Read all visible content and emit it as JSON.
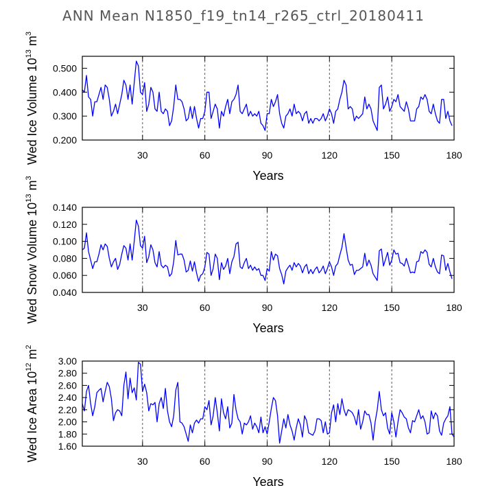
{
  "figure_title": "ANN Mean N1850_f19_tn14_r265_ctrl_20180411",
  "chart_data": [
    {
      "type": "line",
      "title": "",
      "xlabel": "Years",
      "ylabel_parts": {
        "prefix": "Wed Ice Volume 10",
        "exp1": "13",
        "mid": " m",
        "exp2": "3"
      },
      "xlim": [
        1,
        180
      ],
      "ylim": [
        0.2,
        0.55
      ],
      "xticks": [
        30,
        60,
        90,
        120,
        150,
        180
      ],
      "yticks": [
        0.2,
        0.3,
        0.4,
        0.5
      ],
      "ytick_labels": [
        "0.200",
        "0.300",
        "0.400",
        "0.500"
      ],
      "series": [
        {
          "name": "Wed Ice Volume",
          "color": "#0000ff",
          "values": [
            0.41,
            0.4,
            0.47,
            0.38,
            0.37,
            0.3,
            0.36,
            0.36,
            0.39,
            0.42,
            0.37,
            0.43,
            0.42,
            0.37,
            0.3,
            0.32,
            0.35,
            0.31,
            0.35,
            0.39,
            0.45,
            0.43,
            0.37,
            0.43,
            0.35,
            0.44,
            0.53,
            0.51,
            0.4,
            0.39,
            0.44,
            0.32,
            0.35,
            0.42,
            0.4,
            0.33,
            0.32,
            0.4,
            0.32,
            0.31,
            0.33,
            0.32,
            0.26,
            0.28,
            0.34,
            0.43,
            0.37,
            0.37,
            0.36,
            0.33,
            0.28,
            0.29,
            0.34,
            0.29,
            0.34,
            0.29,
            0.25,
            0.29,
            0.29,
            0.32,
            0.4,
            0.4,
            0.29,
            0.32,
            0.35,
            0.33,
            0.25,
            0.32,
            0.3,
            0.34,
            0.37,
            0.31,
            0.36,
            0.37,
            0.39,
            0.43,
            0.32,
            0.31,
            0.33,
            0.35,
            0.3,
            0.32,
            0.3,
            0.31,
            0.3,
            0.32,
            0.27,
            0.26,
            0.24,
            0.31,
            0.31,
            0.37,
            0.34,
            0.36,
            0.39,
            0.31,
            0.27,
            0.25,
            0.3,
            0.31,
            0.33,
            0.3,
            0.35,
            0.31,
            0.32,
            0.31,
            0.28,
            0.31,
            0.32,
            0.27,
            0.29,
            0.27,
            0.29,
            0.29,
            0.28,
            0.29,
            0.31,
            0.28,
            0.3,
            0.33,
            0.31,
            0.27,
            0.32,
            0.33,
            0.37,
            0.4,
            0.45,
            0.43,
            0.33,
            0.34,
            0.33,
            0.28,
            0.3,
            0.29,
            0.3,
            0.31,
            0.38,
            0.33,
            0.35,
            0.33,
            0.28,
            0.26,
            0.24,
            0.42,
            0.43,
            0.33,
            0.35,
            0.38,
            0.32,
            0.34,
            0.37,
            0.36,
            0.39,
            0.34,
            0.33,
            0.32,
            0.36,
            0.33,
            0.28,
            0.28,
            0.28,
            0.33,
            0.34,
            0.38,
            0.37,
            0.39,
            0.37,
            0.32,
            0.31,
            0.35,
            0.31,
            0.28,
            0.27,
            0.37,
            0.37,
            0.29,
            0.32,
            0.28,
            0.26
          ]
        }
      ]
    },
    {
      "type": "line",
      "title": "",
      "xlabel": "Years",
      "ylabel_parts": {
        "prefix": "Wed Snow Volume 10",
        "exp1": "13",
        "mid": " m",
        "exp2": "3"
      },
      "xlim": [
        1,
        180
      ],
      "ylim": [
        0.04,
        0.14
      ],
      "xticks": [
        30,
        60,
        90,
        120,
        150,
        180
      ],
      "yticks": [
        0.04,
        0.06,
        0.08,
        0.1,
        0.12,
        0.14
      ],
      "ytick_labels": [
        "0.040",
        "0.060",
        "0.080",
        "0.100",
        "0.120",
        "0.140"
      ],
      "series": [
        {
          "name": "Wed Snow Volume",
          "color": "#0000ff",
          "values": [
            0.09,
            0.092,
            0.11,
            0.088,
            0.078,
            0.068,
            0.076,
            0.076,
            0.085,
            0.096,
            0.09,
            0.097,
            0.094,
            0.08,
            0.07,
            0.076,
            0.08,
            0.067,
            0.073,
            0.085,
            0.095,
            0.092,
            0.078,
            0.097,
            0.078,
            0.1,
            0.125,
            0.118,
            0.095,
            0.092,
            0.106,
            0.075,
            0.082,
            0.096,
            0.09,
            0.075,
            0.07,
            0.088,
            0.072,
            0.069,
            0.072,
            0.07,
            0.059,
            0.062,
            0.076,
            0.101,
            0.084,
            0.085,
            0.085,
            0.078,
            0.064,
            0.066,
            0.077,
            0.065,
            0.076,
            0.063,
            0.053,
            0.06,
            0.062,
            0.07,
            0.087,
            0.085,
            0.06,
            0.068,
            0.085,
            0.08,
            0.055,
            0.075,
            0.067,
            0.071,
            0.08,
            0.062,
            0.076,
            0.082,
            0.097,
            0.099,
            0.07,
            0.068,
            0.075,
            0.08,
            0.068,
            0.072,
            0.066,
            0.07,
            0.066,
            0.068,
            0.06,
            0.06,
            0.054,
            0.068,
            0.065,
            0.088,
            0.078,
            0.085,
            0.083,
            0.068,
            0.061,
            0.05,
            0.065,
            0.069,
            0.072,
            0.066,
            0.075,
            0.07,
            0.074,
            0.071,
            0.063,
            0.07,
            0.073,
            0.062,
            0.067,
            0.062,
            0.067,
            0.07,
            0.063,
            0.066,
            0.071,
            0.062,
            0.068,
            0.076,
            0.07,
            0.06,
            0.071,
            0.074,
            0.084,
            0.093,
            0.109,
            0.093,
            0.078,
            0.072,
            0.073,
            0.061,
            0.066,
            0.066,
            0.068,
            0.07,
            0.086,
            0.071,
            0.078,
            0.072,
            0.062,
            0.058,
            0.054,
            0.089,
            0.091,
            0.071,
            0.079,
            0.087,
            0.072,
            0.078,
            0.09,
            0.085,
            0.086,
            0.075,
            0.074,
            0.071,
            0.08,
            0.072,
            0.063,
            0.064,
            0.063,
            0.076,
            0.077,
            0.088,
            0.086,
            0.09,
            0.087,
            0.073,
            0.07,
            0.08,
            0.07,
            0.064,
            0.062,
            0.084,
            0.083,
            0.066,
            0.074,
            0.064,
            0.056
          ]
        }
      ]
    },
    {
      "type": "line",
      "title": "",
      "xlabel": "Years",
      "ylabel_parts": {
        "prefix": "Wed Ice Area 10",
        "exp1": "12",
        "mid": " m",
        "exp2": "2"
      },
      "xlim": [
        1,
        180
      ],
      "ylim": [
        1.6,
        3.0
      ],
      "xticks": [
        30,
        60,
        90,
        120,
        150,
        180
      ],
      "yticks": [
        1.6,
        1.8,
        2.0,
        2.2,
        2.4,
        2.6,
        2.8,
        3.0
      ],
      "ytick_labels": [
        "1.60",
        "1.80",
        "2.00",
        "2.20",
        "2.40",
        "2.60",
        "2.80",
        "3.00"
      ],
      "series": [
        {
          "name": "Wed Ice Area",
          "color": "#0000ff",
          "values": [
            2.3,
            2.18,
            2.5,
            2.6,
            2.3,
            2.1,
            2.25,
            2.48,
            2.52,
            2.55,
            2.33,
            2.5,
            2.65,
            2.58,
            2.38,
            2.02,
            2.15,
            2.2,
            2.18,
            2.1,
            2.6,
            2.82,
            2.38,
            2.72,
            2.48,
            2.56,
            2.36,
            2.98,
            2.95,
            2.5,
            2.62,
            2.48,
            2.18,
            2.3,
            2.28,
            2.32,
            2.0,
            2.3,
            2.4,
            2.22,
            2.55,
            2.18,
            2.0,
            1.92,
            2.1,
            2.52,
            2.65,
            2.0,
            1.98,
            1.92,
            1.8,
            1.68,
            1.95,
            1.82,
            1.98,
            2.03,
            1.98,
            2.05,
            2.05,
            2.25,
            2.2,
            2.35,
            1.95,
            2.1,
            2.4,
            2.15,
            1.85,
            2.38,
            2.15,
            2.05,
            2.25,
            1.9,
            1.98,
            2.45,
            2.2,
            2.05,
            2.0,
            1.8,
            1.98,
            1.95,
            2.0,
            2.1,
            1.88,
            1.98,
            1.92,
            1.82,
            2.08,
            1.82,
            1.92,
            1.8,
            2.0,
            2.22,
            2.4,
            2.35,
            2.1,
            1.65,
            1.85,
            2.05,
            1.9,
            2.12,
            1.95,
            1.85,
            1.7,
            1.9,
            2.05,
            1.95,
            1.75,
            2.1,
            2.02,
            1.82,
            1.8,
            1.78,
            1.85,
            2.05,
            2.05,
            2.02,
            1.82,
            2.0,
            1.8,
            1.82,
            2.15,
            2.28,
            2.0,
            2.3,
            2.12,
            2.38,
            2.2,
            2.1,
            2.2,
            2.18,
            2.15,
            2.08,
            1.95,
            2.2,
            1.88,
            2.0,
            2.18,
            2.12,
            2.12,
            1.98,
            1.7,
            2.0,
            2.2,
            2.5,
            2.2,
            2.1,
            2.15,
            1.9,
            1.8,
            2.15,
            2.0,
            1.75,
            2.0,
            2.2,
            2.15,
            2.08,
            2.05,
            1.9,
            1.82,
            2.02,
            2.0,
            2.1,
            2.2,
            2.05,
            2.1,
            2.0,
            1.8,
            1.82,
            2.18,
            2.05,
            2.15,
            2.1,
            1.85,
            1.78,
            1.98,
            2.05,
            2.1,
            2.25,
            1.8,
            1.75
          ]
        }
      ]
    }
  ]
}
